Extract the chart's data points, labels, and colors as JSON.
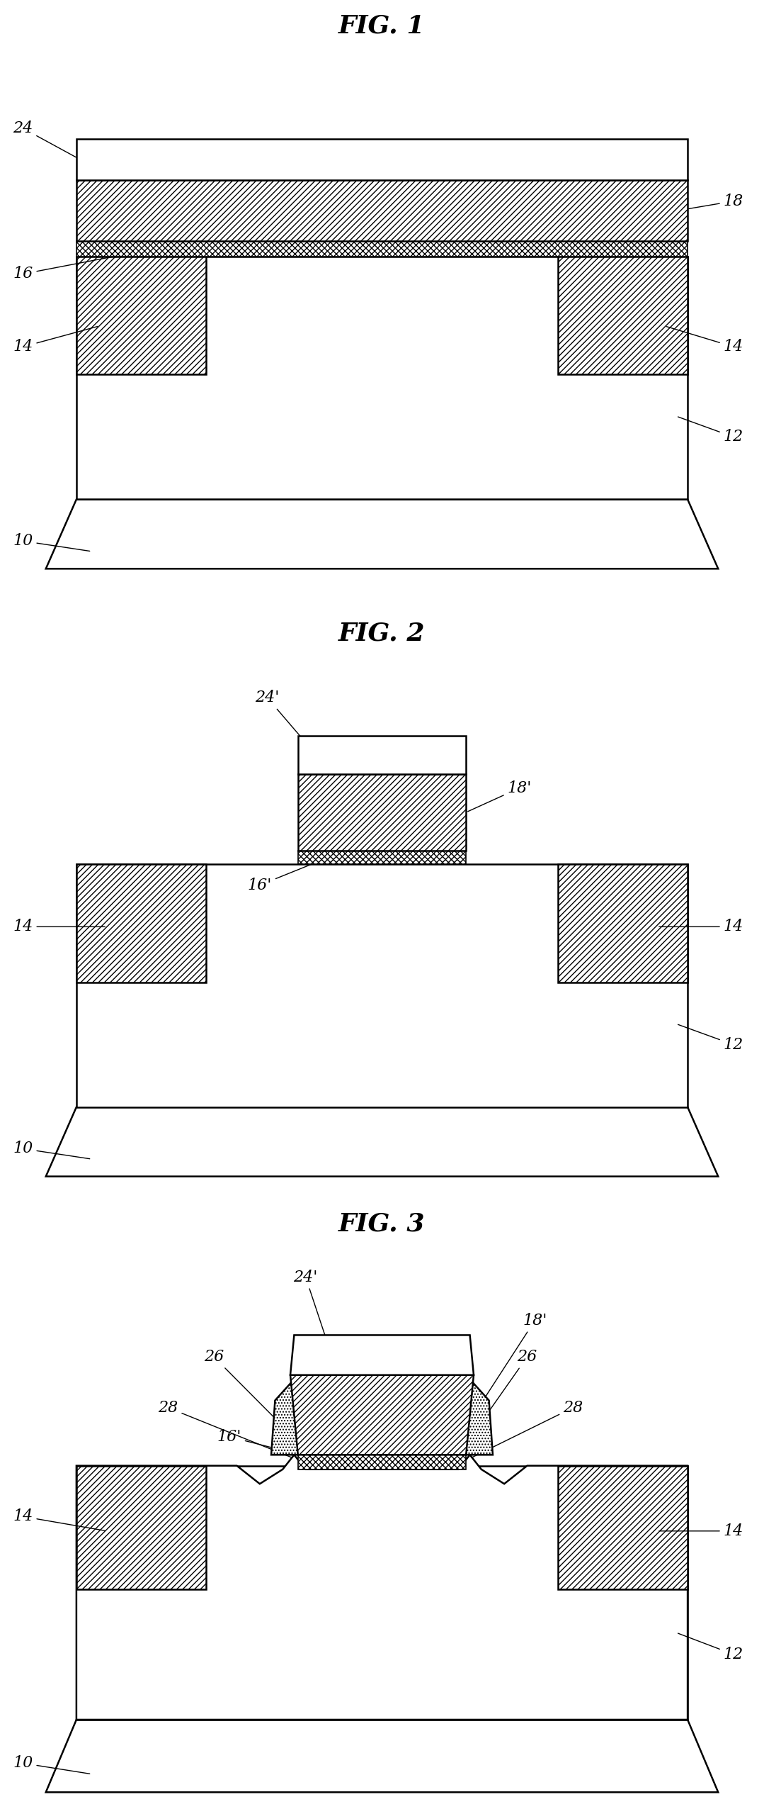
{
  "fig_title_1": "FIG. 1",
  "fig_title_2": "FIG. 2",
  "fig_title_3": "FIG. 3",
  "bg_color": "#ffffff",
  "font_size_title": 26,
  "font_size_label": 16
}
